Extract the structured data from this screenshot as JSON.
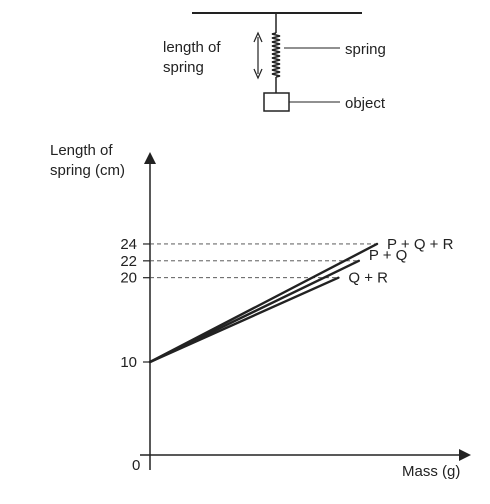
{
  "apparatus": {
    "length_label_line1": "length of",
    "length_label_line2": "spring",
    "spring_label": "spring",
    "object_label": "object"
  },
  "chart_data": {
    "type": "line",
    "ylabel_line1": "Length of",
    "ylabel_line2": "spring (cm)",
    "xlabel": "Mass (g)",
    "origin_label": "0",
    "y_ticks": [
      "10",
      "20",
      "22",
      "24"
    ],
    "y_tick_values": [
      10,
      20,
      22,
      24
    ],
    "series": [
      {
        "name": "P + Q + R",
        "x": [
          0,
          1
        ],
        "y": [
          10,
          24
        ]
      },
      {
        "name": "P + Q",
        "x": [
          0,
          0.92
        ],
        "y": [
          10,
          22
        ]
      },
      {
        "name": "Q + R",
        "x": [
          0,
          0.83
        ],
        "y": [
          10,
          20
        ]
      }
    ],
    "grid": false
  }
}
